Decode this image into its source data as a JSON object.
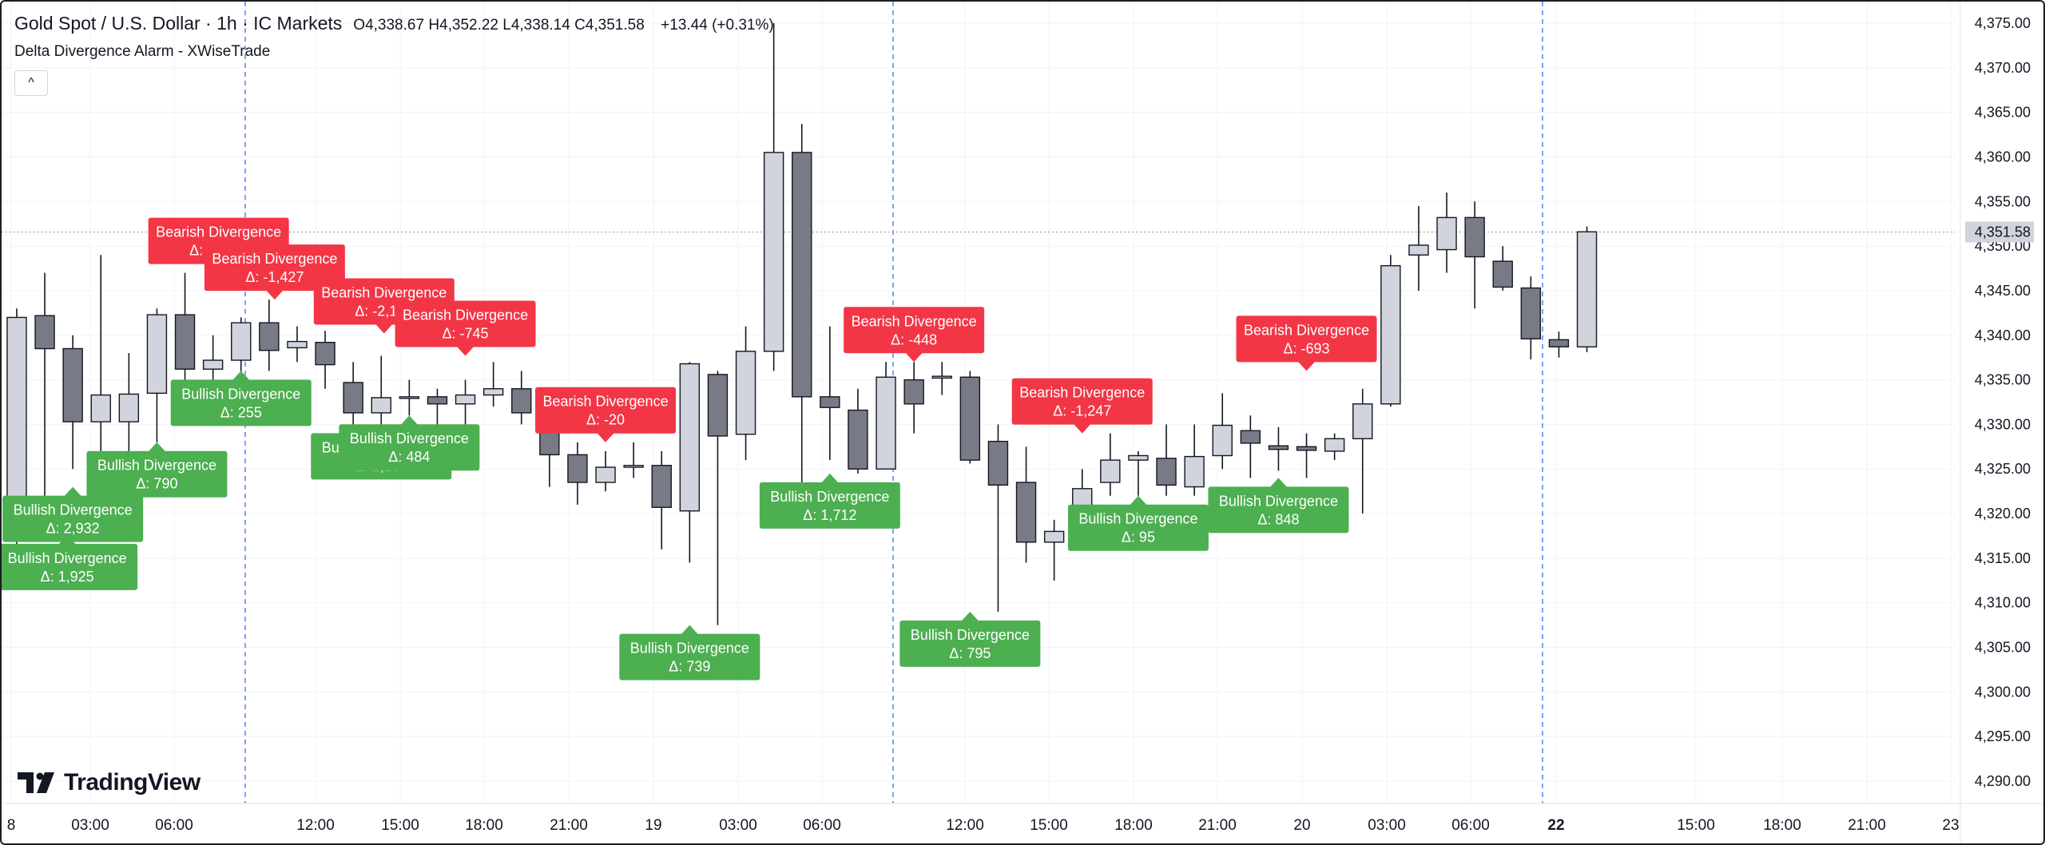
{
  "header": {
    "title": "Gold Spot / U.S. Dollar · 1h · IC Markets",
    "ohlc": "O4,338.67 H4,352.22 L4,338.14 C4,351.58",
    "change": "+13.44 (+0.31%)"
  },
  "indicator": {
    "name": "Delta Divergence Alarm - XWiseTrade"
  },
  "collapse_glyph": "^",
  "brand": {
    "name": "TradingView"
  },
  "colors": {
    "bull_candle": "#d1d4dc",
    "bear_candle": "#787b86",
    "candle_border": "#131722",
    "bearish_label": "#f23645",
    "bullish_label": "#4caf50",
    "session_line": "#2962ff",
    "price_tag": "#d1d4dc"
  },
  "chart_data": {
    "type": "candlestick",
    "x_ticks": [
      "8",
      "03:00",
      "06:00",
      "12:00",
      "15:00",
      "18:00",
      "21:00",
      "19",
      "03:00",
      "06:00",
      "12:00",
      "15:00",
      "18:00",
      "21:00",
      "20",
      "03:00",
      "06:00",
      "22",
      "15:00",
      "18:00",
      "21:00",
      "23"
    ],
    "y_ticks": [
      "4,375.00",
      "4,370.00",
      "4,365.00",
      "4,360.00",
      "4,355.00",
      "4,350.00",
      "4,345.00",
      "4,340.00",
      "4,335.00",
      "4,330.00",
      "4,325.00",
      "4,320.00",
      "4,315.00",
      "4,310.00",
      "4,305.00",
      "4,300.00",
      "4,295.00",
      "4,290.00"
    ],
    "ylim": [
      4287.5,
      4377.3
    ],
    "last_price": "4,351.58",
    "last_price_value": 4351.58,
    "candles": [
      {
        "t": -0.6,
        "o": 4317.8,
        "h": 4343,
        "l": 4315,
        "c": 4342
      },
      {
        "t": 0.4,
        "o": 4342.2,
        "h": 4347,
        "l": 4322,
        "c": 4338.5
      },
      {
        "t": 1.4,
        "o": 4338.5,
        "h": 4340,
        "l": 4325,
        "c": 4330.3
      },
      {
        "t": 2.4,
        "o": 4330.3,
        "h": 4349,
        "l": 4322,
        "c": 4333.3
      },
      {
        "t": 3.4,
        "o": 4330.3,
        "h": 4338,
        "l": 4325,
        "c": 4333.4
      },
      {
        "t": 4.4,
        "o": 4333.5,
        "h": 4343,
        "l": 4328,
        "c": 4342.3
      },
      {
        "t": 5.4,
        "o": 4342.3,
        "h": 4347,
        "l": 4330,
        "c": 4336.2
      },
      {
        "t": 6.4,
        "o": 4336.2,
        "h": 4340,
        "l": 4333,
        "c": 4337.2
      },
      {
        "t": 7.4,
        "o": 4337.2,
        "h": 4342,
        "l": 4335,
        "c": 4341.4
      },
      {
        "t": 8.4,
        "o": 4341.4,
        "h": 4344,
        "l": 4336,
        "c": 4338.3
      },
      {
        "t": 9.4,
        "o": 4338.6,
        "h": 4341,
        "l": 4337,
        "c": 4339.3
      },
      {
        "t": 10.4,
        "o": 4339.2,
        "h": 4340.5,
        "l": 4334,
        "c": 4336.7
      },
      {
        "t": 11.4,
        "o": 4334.7,
        "h": 4337,
        "l": 4330,
        "c": 4331.3
      },
      {
        "t": 12.4,
        "o": 4331.3,
        "h": 4337.7,
        "l": 4330,
        "c": 4333.0
      },
      {
        "t": 13.4,
        "o": 4333.0,
        "h": 4335,
        "l": 4331,
        "c": 4333.1
      },
      {
        "t": 14.4,
        "o": 4333.1,
        "h": 4334,
        "l": 4330,
        "c": 4332.3
      },
      {
        "t": 15.4,
        "o": 4332.3,
        "h": 4335,
        "l": 4330,
        "c": 4333.3
      },
      {
        "t": 16.4,
        "o": 4333.3,
        "h": 4337,
        "l": 4332,
        "c": 4334.0
      },
      {
        "t": 17.4,
        "o": 4334.0,
        "h": 4336,
        "l": 4330,
        "c": 4331.3
      },
      {
        "t": 18.4,
        "o": 4330.8,
        "h": 4332,
        "l": 4323,
        "c": 4326.6
      },
      {
        "t": 19.4,
        "o": 4326.6,
        "h": 4328,
        "l": 4321,
        "c": 4323.5
      },
      {
        "t": 20.4,
        "o": 4323.5,
        "h": 4327,
        "l": 4322.5,
        "c": 4325.2
      },
      {
        "t": 21.4,
        "o": 4325.2,
        "h": 4328,
        "l": 4324,
        "c": 4325.4
      },
      {
        "t": 22.4,
        "o": 4325.4,
        "h": 4327,
        "l": 4316,
        "c": 4320.7
      },
      {
        "t": 23.4,
        "o": 4320.3,
        "h": 4337,
        "l": 4314.5,
        "c": 4336.8
      },
      {
        "t": 24.4,
        "o": 4335.6,
        "h": 4336,
        "l": 4307.5,
        "c": 4328.7
      },
      {
        "t": 25.4,
        "o": 4328.9,
        "h": 4341,
        "l": 4326,
        "c": 4338.2
      },
      {
        "t": 26.4,
        "o": 4338.2,
        "h": 4375,
        "l": 4336,
        "c": 4360.5
      },
      {
        "t": 27.4,
        "o": 4360.5,
        "h": 4363.7,
        "l": 4321,
        "c": 4333.1
      },
      {
        "t": 28.4,
        "o": 4333.1,
        "h": 4341,
        "l": 4326,
        "c": 4331.9
      },
      {
        "t": 29.4,
        "o": 4331.6,
        "h": 4334,
        "l": 4324.5,
        "c": 4325.0
      },
      {
        "t": 30.4,
        "o": 4325.0,
        "h": 4337,
        "l": 4325,
        "c": 4335.3
      },
      {
        "t": 31.4,
        "o": 4335.0,
        "h": 4337,
        "l": 4329,
        "c": 4332.3
      },
      {
        "t": 32.4,
        "o": 4335.2,
        "h": 4337,
        "l": 4333.3,
        "c": 4335.4
      },
      {
        "t": 33.4,
        "o": 4335.3,
        "h": 4336,
        "l": 4325.6,
        "c": 4326.0
      },
      {
        "t": 34.4,
        "o": 4328.1,
        "h": 4330,
        "l": 4309,
        "c": 4323.2
      },
      {
        "t": 35.4,
        "o": 4323.5,
        "h": 4327.5,
        "l": 4314.5,
        "c": 4316.8
      },
      {
        "t": 36.4,
        "o": 4316.8,
        "h": 4319.3,
        "l": 4312.5,
        "c": 4318.0
      },
      {
        "t": 37.4,
        "o": 4318.0,
        "h": 4325,
        "l": 4317,
        "c": 4322.8
      },
      {
        "t": 38.4,
        "o": 4323.5,
        "h": 4329,
        "l": 4322,
        "c": 4326.0
      },
      {
        "t": 39.4,
        "o": 4326.0,
        "h": 4327,
        "l": 4322,
        "c": 4326.5
      },
      {
        "t": 40.4,
        "o": 4326.2,
        "h": 4330,
        "l": 4322,
        "c": 4323.2
      },
      {
        "t": 41.4,
        "o": 4323.0,
        "h": 4330,
        "l": 4322,
        "c": 4326.4
      },
      {
        "t": 42.4,
        "o": 4326.5,
        "h": 4333.5,
        "l": 4325,
        "c": 4329.9
      },
      {
        "t": 43.4,
        "o": 4329.3,
        "h": 4331,
        "l": 4324,
        "c": 4327.9
      },
      {
        "t": 44.4,
        "o": 4327.6,
        "h": 4329.7,
        "l": 4324.8,
        "c": 4327.2
      },
      {
        "t": 45.4,
        "o": 4327.5,
        "h": 4329,
        "l": 4324,
        "c": 4327.1
      },
      {
        "t": 46.4,
        "o": 4327.0,
        "h": 4329,
        "l": 4326,
        "c": 4328.4
      },
      {
        "t": 47.4,
        "o": 4328.4,
        "h": 4334,
        "l": 4320,
        "c": 4332.3
      },
      {
        "t": 48.4,
        "o": 4332.3,
        "h": 4349,
        "l": 4332,
        "c": 4347.8
      },
      {
        "t": 49.4,
        "o": 4349.0,
        "h": 4354.5,
        "l": 4345,
        "c": 4350.1
      },
      {
        "t": 50.4,
        "o": 4349.6,
        "h": 4356,
        "l": 4347,
        "c": 4353.2
      },
      {
        "t": 51.4,
        "o": 4353.2,
        "h": 4355,
        "l": 4343,
        "c": 4348.8
      },
      {
        "t": 52.4,
        "o": 4348.3,
        "h": 4350,
        "l": 4345,
        "c": 4345.4
      },
      {
        "t": 53.4,
        "o": 4345.3,
        "h": 4346.6,
        "l": 4337.3,
        "c": 4339.6
      },
      {
        "t": 54.4,
        "o": 4339.5,
        "h": 4340.4,
        "l": 4337.5,
        "c": 4338.7
      },
      {
        "t": 55.4,
        "o": 4338.7,
        "h": 4352.2,
        "l": 4338.1,
        "c": 4351.6
      }
    ],
    "divergence_labels": [
      {
        "kind": "bullish",
        "title": "Bullish Divergence",
        "delta": "Δ: 1,925",
        "t": 1.2,
        "v": 4317.6
      },
      {
        "kind": "bullish",
        "title": "Bullish Divergence",
        "delta": "Δ: 2,932",
        "t": 1.4,
        "v": 4323.0
      },
      {
        "kind": "bullish",
        "title": "Bullish Divergence",
        "delta": "Δ: 790",
        "t": 4.4,
        "v": 4328.0
      },
      {
        "kind": "bearish",
        "title": "Bearish Divergence",
        "delta": "Δ: -1,509",
        "t": 6.6,
        "v": 4347.0
      },
      {
        "kind": "bearish",
        "title": "Bearish Divergence",
        "delta": "Δ: -1,427",
        "t": 8.6,
        "v": 4344.0
      },
      {
        "kind": "bullish",
        "title": "Bullish Divergence",
        "delta": "Δ: 255",
        "t": 7.4,
        "v": 4336.0
      },
      {
        "kind": "bearish",
        "title": "Bearish Divergence",
        "delta": "Δ: -2,174",
        "t": 12.5,
        "v": 4340.2
      },
      {
        "kind": "bullish",
        "title": "Bullish Divergence",
        "delta": "Δ: 1,187",
        "t": 12.4,
        "v": 4330.0
      },
      {
        "kind": "bearish",
        "title": "Bearish Divergence",
        "delta": "Δ: -745",
        "t": 15.4,
        "v": 4337.7
      },
      {
        "kind": "bullish",
        "title": "Bullish Divergence",
        "delta": "Δ: 484",
        "t": 13.4,
        "v": 4331.0
      },
      {
        "kind": "bearish",
        "title": "Bearish Divergence",
        "delta": "Δ: -20",
        "t": 20.4,
        "v": 4328.0
      },
      {
        "kind": "bullish",
        "title": "Bullish Divergence",
        "delta": "Δ: 739",
        "t": 23.4,
        "v": 4307.5
      },
      {
        "kind": "bullish",
        "title": "Bullish Divergence",
        "delta": "Δ: 1,712",
        "t": 28.4,
        "v": 4324.5
      },
      {
        "kind": "bearish",
        "title": "Bearish Divergence",
        "delta": "Δ: -448",
        "t": 31.4,
        "v": 4337.0
      },
      {
        "kind": "bullish",
        "title": "Bullish Divergence",
        "delta": "Δ: 795",
        "t": 33.4,
        "v": 4309.0
      },
      {
        "kind": "bearish",
        "title": "Bearish Divergence",
        "delta": "Δ: -1,247",
        "t": 37.4,
        "v": 4329.0
      },
      {
        "kind": "bullish",
        "title": "Bullish Divergence",
        "delta": "Δ: 95",
        "t": 39.4,
        "v": 4322.0
      },
      {
        "kind": "bearish",
        "title": "Bearish Divergence",
        "delta": "Δ: -693",
        "t": 45.4,
        "v": 4336.0
      },
      {
        "kind": "bullish",
        "title": "Bullish Divergence",
        "delta": "Δ: 848",
        "t": 44.4,
        "v": 4324.0
      }
    ]
  }
}
